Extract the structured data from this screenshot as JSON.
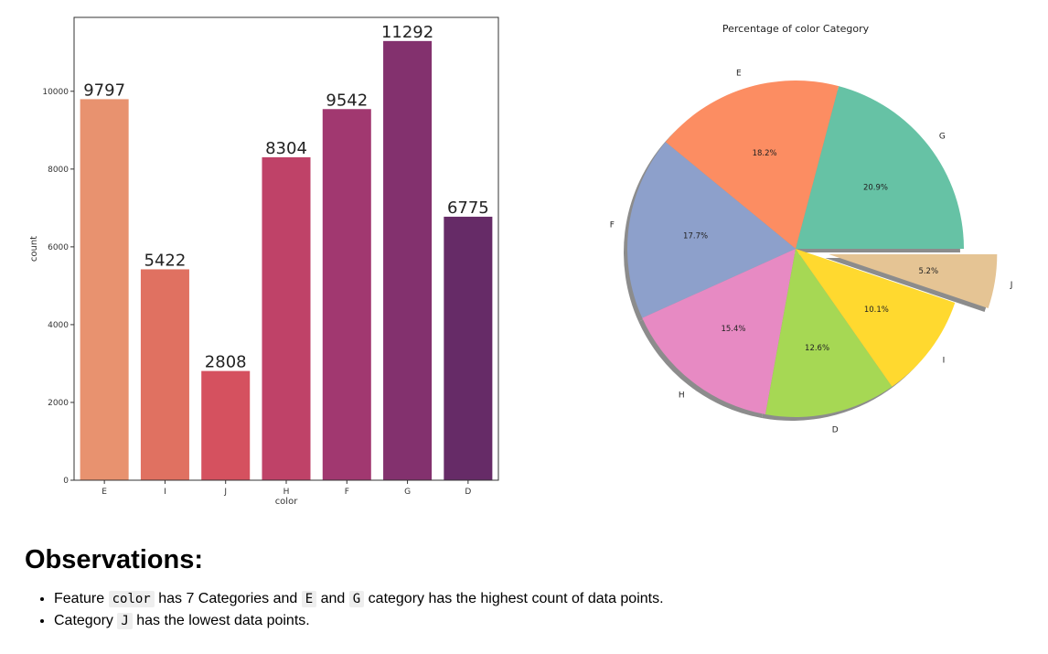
{
  "chart_data": [
    {
      "type": "bar",
      "categories": [
        "E",
        "I",
        "J",
        "H",
        "F",
        "G",
        "D"
      ],
      "values": [
        9797,
        5422,
        2808,
        8304,
        9542,
        11292,
        6775
      ],
      "data_labels": [
        "9797",
        "5422",
        "2808",
        "8304",
        "9542",
        "11292",
        "6775"
      ],
      "colors": [
        "#e8926f",
        "#e07161",
        "#d5515f",
        "#bf4268",
        "#a13870",
        "#83316e",
        "#662b67"
      ],
      "xlabel": "color",
      "ylabel": "count",
      "ylim": [
        0,
        11900
      ],
      "yticks": [
        0,
        2000,
        4000,
        6000,
        8000,
        10000
      ],
      "ytick_labels": [
        "0",
        "2000",
        "4000",
        "6000",
        "8000",
        "10000"
      ],
      "grid": false
    },
    {
      "type": "pie",
      "title": "Percentage of color Category",
      "labels": [
        "G",
        "E",
        "F",
        "H",
        "D",
        "I",
        "J"
      ],
      "values": [
        20.9,
        18.2,
        17.7,
        15.4,
        12.6,
        10.1,
        5.2
      ],
      "value_labels": [
        "20.9%",
        "18.2%",
        "17.7%",
        "15.4%",
        "12.6%",
        "10.1%",
        "5.2%"
      ],
      "colors": [
        "#66c2a5",
        "#fc8d62",
        "#8da0cb",
        "#e78ac3",
        "#a6d854",
        "#ffd92f",
        "#e5c494"
      ],
      "exploded": [
        "J"
      ],
      "shadow": true
    }
  ],
  "observations": {
    "heading": "Observations:",
    "items": [
      {
        "parts": [
          {
            "text": "Feature "
          },
          {
            "code": "color"
          },
          {
            "text": " has 7 Categories and "
          },
          {
            "code": "E"
          },
          {
            "text": " and "
          },
          {
            "code": "G"
          },
          {
            "text": " category has the highest count of data points."
          }
        ]
      },
      {
        "parts": [
          {
            "text": "Category "
          },
          {
            "code": "J"
          },
          {
            "text": " has the lowest data points."
          }
        ]
      }
    ]
  }
}
